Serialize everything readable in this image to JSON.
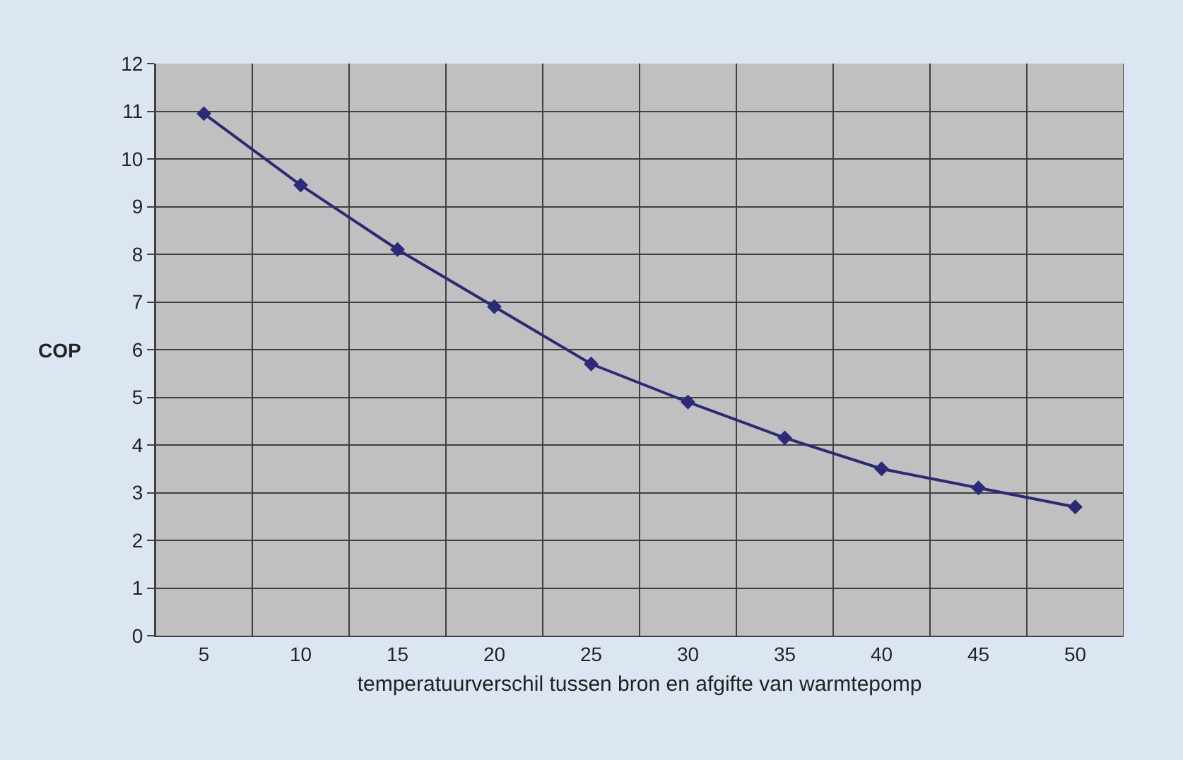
{
  "chart_data": {
    "type": "line",
    "xlabel": "temperatuurverschil tussen bron en afgifte van warmtepomp",
    "ylabel": "COP",
    "categories": [
      "5",
      "10",
      "15",
      "20",
      "25",
      "30",
      "35",
      "40",
      "45",
      "50"
    ],
    "series": [
      {
        "color": "#2b2a78",
        "values": [
          10.95,
          9.45,
          8.1,
          6.9,
          5.7,
          4.9,
          4.15,
          3.5,
          3.1,
          2.7
        ]
      }
    ],
    "ylim": [
      0,
      12
    ],
    "yticks": [
      0,
      1,
      2,
      3,
      4,
      5,
      6,
      7,
      8,
      9,
      10,
      11,
      12
    ],
    "grid": true,
    "marker": "diamond",
    "line_style": "solid"
  }
}
